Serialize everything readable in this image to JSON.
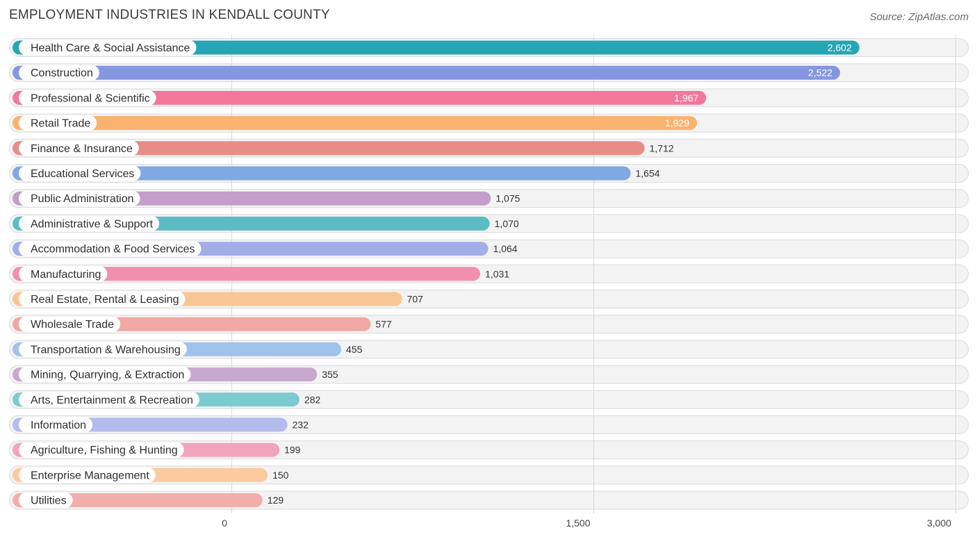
{
  "chart_data": {
    "type": "bar",
    "orientation": "horizontal",
    "title": "EMPLOYMENT INDUSTRIES IN KENDALL COUNTY",
    "source": "Source: ZipAtlas.com",
    "xlabel": "",
    "ylabel": "",
    "xlim": [
      0,
      3000
    ],
    "ticks": [
      {
        "value": 0,
        "label": "0"
      },
      {
        "value": 1500,
        "label": "1,500"
      },
      {
        "value": 3000,
        "label": "3,000"
      }
    ],
    "grid": true,
    "categories": [
      "Health Care & Social Assistance",
      "Construction",
      "Professional & Scientific",
      "Retail Trade",
      "Finance & Insurance",
      "Educational Services",
      "Public Administration",
      "Administrative & Support",
      "Accommodation & Food Services",
      "Manufacturing",
      "Real Estate, Rental & Leasing",
      "Wholesale Trade",
      "Transportation & Warehousing",
      "Mining, Quarrying, & Extraction",
      "Arts, Entertainment & Recreation",
      "Information",
      "Agriculture, Fishing & Hunting",
      "Enterprise Management",
      "Utilities"
    ],
    "values": [
      2602,
      2522,
      1967,
      1929,
      1712,
      1654,
      1075,
      1070,
      1064,
      1031,
      707,
      577,
      455,
      355,
      282,
      232,
      199,
      150,
      129
    ],
    "value_labels": [
      "2,602",
      "2,522",
      "1,967",
      "1,929",
      "1,712",
      "1,654",
      "1,075",
      "1,070",
      "1,064",
      "1,031",
      "707",
      "577",
      "455",
      "355",
      "282",
      "232",
      "199",
      "150",
      "129"
    ],
    "colors": [
      "#26a6b4",
      "#8497e0",
      "#f2779b",
      "#f9b36e",
      "#e98b87",
      "#7ea9e2",
      "#c39ec8",
      "#5cbcc5",
      "#a3ade8",
      "#f38fae",
      "#f8c694",
      "#f0a8a4",
      "#a0c2ec",
      "#c9a8d0",
      "#7ccbd0",
      "#b3bcec",
      "#f4a3bd",
      "#f9cb9e",
      "#f1afab"
    ]
  }
}
